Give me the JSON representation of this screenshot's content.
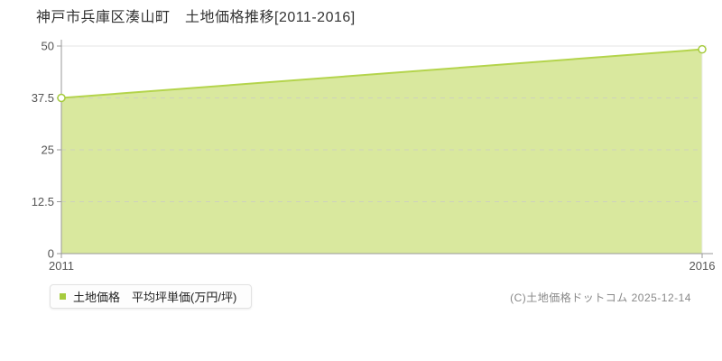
{
  "chart_data": {
    "type": "area",
    "title": "神戸市兵庫区湊山町　土地価格推移[2011-2016]",
    "x": [
      2011,
      2016
    ],
    "values": [
      37.5,
      49.2
    ],
    "series_name": "土地価格　平均坪単価(万円/坪)",
    "xlim": [
      2011,
      2016
    ],
    "ylim": [
      0,
      50
    ],
    "yticks": [
      0,
      12.5,
      25,
      37.5,
      50
    ],
    "ytick_labels": [
      "0",
      "12.5",
      "25",
      "37.5",
      "50"
    ],
    "xticks": [
      2011,
      2016
    ],
    "xtick_labels": [
      "2011",
      "2016"
    ],
    "grid": "horizontal, dashed at 12.5/25/37.5, solid at 50",
    "legend_position": "bottom-left",
    "colors": {
      "area_fill": "#d9e89e",
      "line": "#b4d44c",
      "marker_stroke": "#a6cb3e",
      "marker_fill": "#ffffff",
      "legend_swatch": "#a6cb3e",
      "grid_solid": "#e4e4e4",
      "grid_dashed": "#c9c9c9",
      "axis": "#999999",
      "tick_text": "#555555",
      "title_text": "#333333"
    }
  },
  "legend": {
    "label": "土地価格　平均坪単価(万円/坪)"
  },
  "footer": {
    "copyright": "(C)土地価格ドットコム 2025-12-14"
  }
}
